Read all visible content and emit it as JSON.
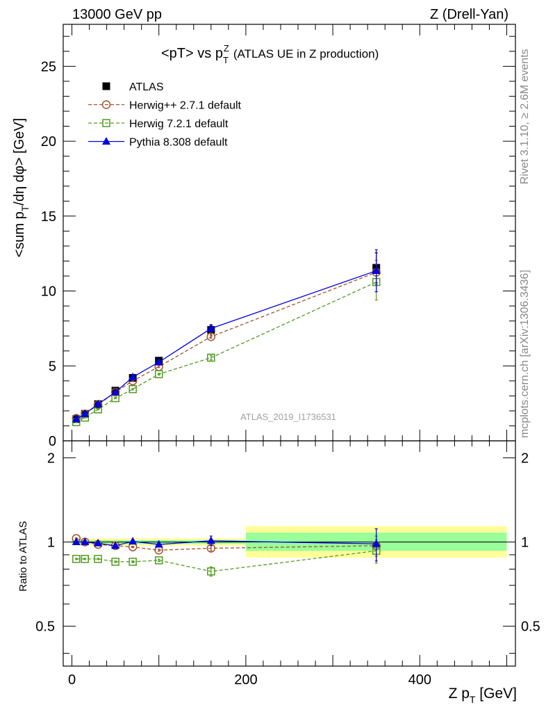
{
  "header": {
    "left": "13000 GeV pp",
    "right": "Z (Drell-Yan)"
  },
  "side_text": {
    "rivet": "Rivet 3.1.10, ≥ 2.6M events",
    "mcplots": "mcplots.cern.ch [arXiv:1306.3436]"
  },
  "watermark": "ATLAS_2019_I1736531",
  "chart_data": [
    {
      "type": "line",
      "title": "<pT> vs p_T^Z (ATLAS UE in Z production)",
      "title_parts": {
        "main": "<pT> vs p",
        "sub": "T",
        "sup": "Z",
        "tail": "(ATLAS UE in Z production)"
      },
      "xlabel": "Z p_T [GeV]",
      "ylabel": "<sum p_T/dη dφ> [GeV]",
      "ylabel_parts": {
        "pre": "<sum p",
        "sub": "T",
        "post": "/dη dφ> [GeV]"
      },
      "xlim": [
        -10,
        510
      ],
      "ylim": [
        0,
        27.8
      ],
      "yticks": [
        0,
        5,
        10,
        15,
        20,
        25
      ],
      "legend_position": "top-left",
      "x": [
        5,
        15,
        30,
        50,
        70,
        100,
        160,
        350
      ],
      "series": [
        {
          "name": "ATLAS",
          "color": "#000000",
          "marker": "filled-square",
          "line": "none",
          "values": [
            1.45,
            1.8,
            2.45,
            3.35,
            4.2,
            5.35,
            7.4,
            11.55
          ],
          "errors": [
            0.05,
            0.05,
            0.05,
            0.08,
            0.1,
            0.12,
            0.35,
            1.0
          ]
        },
        {
          "name": "Herwig++ 2.7.1 default",
          "color": "#a0522d",
          "marker": "open-circle",
          "line": "dashed",
          "values": [
            1.5,
            1.8,
            2.4,
            3.25,
            4.0,
            4.95,
            6.95,
            11.25
          ],
          "errors": [
            0.02,
            0.02,
            0.03,
            0.04,
            0.05,
            0.06,
            0.1,
            0.8
          ]
        },
        {
          "name": "Herwig 7.2.1 default",
          "color": "#4f9a1f",
          "marker": "open-square",
          "line": "dashed",
          "values": [
            1.25,
            1.55,
            2.1,
            2.85,
            3.45,
            4.45,
            5.55,
            10.6
          ],
          "errors": [
            0.02,
            0.02,
            0.03,
            0.04,
            0.05,
            0.06,
            0.15,
            1.2
          ]
        },
        {
          "name": "Pythia 8.308 default",
          "color": "#0000e0",
          "marker": "filled-triangle",
          "line": "solid",
          "values": [
            1.45,
            1.8,
            2.45,
            3.25,
            4.25,
            5.25,
            7.5,
            11.35
          ],
          "errors": [
            0.02,
            0.03,
            0.04,
            0.05,
            0.06,
            0.08,
            0.2,
            1.4
          ]
        }
      ]
    },
    {
      "type": "line",
      "ylabel": "Ratio to ATLAS",
      "xlabel": "Z p_T [GeV]",
      "ylim": [
        0.36,
        2.3
      ],
      "log_y": true,
      "yticks": [
        0.5,
        1,
        2
      ],
      "xticks": [
        0,
        200,
        400
      ],
      "x": [
        5,
        15,
        30,
        50,
        70,
        100,
        160,
        350
      ],
      "data_bands": [
        {
          "xrange": [
            0,
            200
          ],
          "inner": [
            0.985,
            1.015
          ],
          "outer": [
            0.97,
            1.03
          ]
        },
        {
          "xrange": [
            200,
            500
          ],
          "inner": [
            0.93,
            1.08
          ],
          "outer": [
            0.88,
            1.14
          ]
        }
      ],
      "series": [
        {
          "name": "Herwig++ 2.7.1 default",
          "color": "#a0522d",
          "marker": "open-circle",
          "line": "dashed",
          "values": [
            1.03,
            1.0,
            0.98,
            0.97,
            0.96,
            0.935,
            0.95,
            0.97
          ],
          "errors": [
            0.005,
            0.005,
            0.005,
            0.005,
            0.005,
            0.008,
            0.02,
            0.08
          ]
        },
        {
          "name": "Herwig 7.2.1 default",
          "color": "#4f9a1f",
          "marker": "open-square",
          "line": "dashed",
          "values": [
            0.87,
            0.87,
            0.87,
            0.85,
            0.85,
            0.86,
            0.785,
            0.93
          ],
          "errors": [
            0.005,
            0.005,
            0.005,
            0.005,
            0.006,
            0.008,
            0.03,
            0.09
          ]
        },
        {
          "name": "Pythia 8.308 default",
          "color": "#0000e0",
          "marker": "filled-triangle",
          "line": "solid",
          "values": [
            1.0,
            1.0,
            0.99,
            0.97,
            1.005,
            0.98,
            1.01,
            0.985
          ],
          "errors": [
            0.01,
            0.01,
            0.01,
            0.01,
            0.015,
            0.015,
            0.04,
            0.13
          ]
        }
      ]
    }
  ]
}
